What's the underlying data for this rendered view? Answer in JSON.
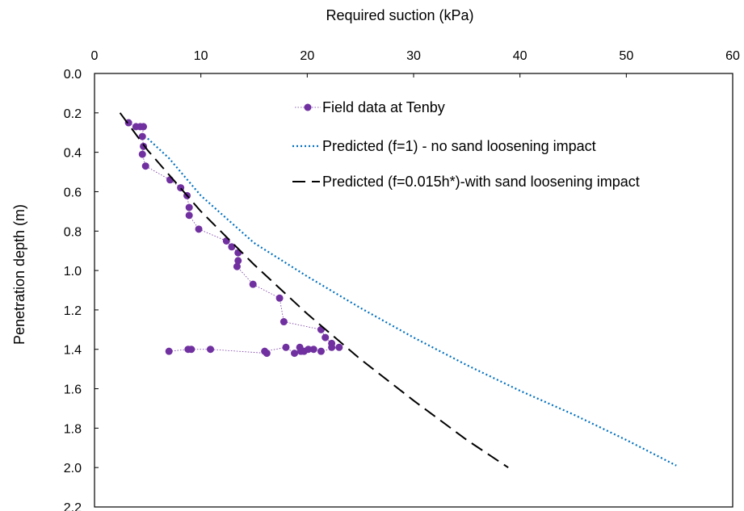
{
  "chart_data": {
    "type": "scatter",
    "xlabel": "Required suction (kPa)",
    "ylabel": "Penetration depth (m)",
    "xlim": [
      0,
      60
    ],
    "ylim": [
      0,
      2.2
    ],
    "y_inverted": true,
    "x_axis_position": "top",
    "x_ticks": [
      0,
      10,
      20,
      30,
      40,
      50,
      60
    ],
    "y_ticks": [
      0.0,
      0.2,
      0.4,
      0.6,
      0.8,
      1.0,
      1.2,
      1.4,
      1.6,
      1.8,
      2.0,
      2.2
    ],
    "x_tick_labels": [
      "0",
      "10",
      "20",
      "30",
      "40",
      "50",
      "60"
    ],
    "y_tick_labels": [
      "0.0",
      "0.2",
      "0.4",
      "0.6",
      "0.8",
      "1.0",
      "1.2",
      "1.4",
      "1.6",
      "1.8",
      "2.0",
      "2.2"
    ],
    "grid": false,
    "legend_position": "top-right (inside)",
    "series": [
      {
        "name": "Field data at Tenby",
        "style": "markers-dotted-line",
        "color": "#7030A0",
        "points": [
          [
            3.2,
            0.25
          ],
          [
            3.9,
            0.27
          ],
          [
            4.3,
            0.27
          ],
          [
            4.6,
            0.27
          ],
          [
            4.5,
            0.32
          ],
          [
            4.6,
            0.37
          ],
          [
            4.5,
            0.41
          ],
          [
            4.8,
            0.47
          ],
          [
            7.1,
            0.54
          ],
          [
            8.1,
            0.58
          ],
          [
            8.7,
            0.62
          ],
          [
            8.9,
            0.68
          ],
          [
            8.9,
            0.72
          ],
          [
            9.8,
            0.79
          ],
          [
            12.4,
            0.85
          ],
          [
            12.9,
            0.88
          ],
          [
            13.5,
            0.91
          ],
          [
            13.5,
            0.95
          ],
          [
            13.4,
            0.98
          ],
          [
            14.9,
            1.07
          ],
          [
            17.4,
            1.14
          ],
          [
            17.8,
            1.26
          ],
          [
            21.3,
            1.3
          ],
          [
            21.7,
            1.34
          ],
          [
            22.3,
            1.37
          ],
          [
            22.3,
            1.39
          ],
          [
            23.0,
            1.39
          ],
          [
            21.3,
            1.41
          ],
          [
            20.6,
            1.4
          ],
          [
            20.1,
            1.4
          ],
          [
            19.7,
            1.41
          ],
          [
            19.3,
            1.39
          ],
          [
            19.4,
            1.41
          ],
          [
            18.8,
            1.42
          ],
          [
            18.0,
            1.39
          ],
          [
            16.0,
            1.41
          ],
          [
            16.2,
            1.42
          ],
          [
            10.9,
            1.4
          ],
          [
            9.1,
            1.4
          ],
          [
            8.8,
            1.4
          ],
          [
            7.0,
            1.41
          ]
        ]
      },
      {
        "name": "Predicted (f=1) - no sand loosening impact",
        "style": "dotted-line",
        "color": "#0070C0",
        "points": [
          [
            5.0,
            0.33
          ],
          [
            7.0,
            0.43
          ],
          [
            10.0,
            0.62
          ],
          [
            15.0,
            0.86
          ],
          [
            20.0,
            1.03
          ],
          [
            25.0,
            1.19
          ],
          [
            30.0,
            1.34
          ],
          [
            35.0,
            1.48
          ],
          [
            40.0,
            1.61
          ],
          [
            45.0,
            1.73
          ],
          [
            50.0,
            1.86
          ],
          [
            54.7,
            1.99
          ]
        ]
      },
      {
        "name": "Predicted (f=0.015h*)-with sand loosening impact",
        "style": "dashed-line",
        "color": "#000000",
        "points": [
          [
            2.4,
            0.2
          ],
          [
            5.0,
            0.39
          ],
          [
            10.0,
            0.7
          ],
          [
            15.0,
            0.97
          ],
          [
            20.0,
            1.22
          ],
          [
            25.0,
            1.45
          ],
          [
            30.0,
            1.66
          ],
          [
            35.0,
            1.86
          ],
          [
            38.9,
            2.0
          ]
        ]
      }
    ]
  }
}
